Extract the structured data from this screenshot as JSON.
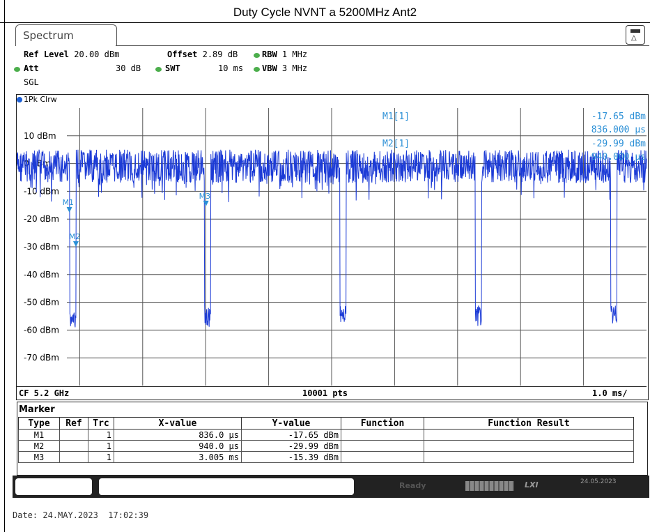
{
  "page_title": "Duty Cycle NVNT a 5200MHz Ant2",
  "tab": {
    "label": "Spectrum"
  },
  "settings": {
    "ref_level_label": "Ref Level",
    "ref_level_value": "20.00 dBm",
    "offset_label": "Offset",
    "offset_value": "2.89 dB",
    "rbw_label": "RBW",
    "rbw_value": "1 MHz",
    "att_label": "Att",
    "att_value": "30 dB",
    "swt_label": "SWT",
    "swt_value": "10 ms",
    "vbw_label": "VBW",
    "vbw_value": "3 MHz",
    "sgl": "SGL"
  },
  "trace": {
    "label": "1Pk Clrw",
    "color": "#1c3bd6"
  },
  "y_axis": {
    "ticks": [
      "10 dBm",
      "0 dBm",
      "-10 dBm",
      "-20 dBm",
      "-30 dBm",
      "-40 dBm",
      "-50 dBm",
      "-60 dBm",
      "-70 dBm"
    ],
    "tick_values": [
      10,
      0,
      -10,
      -20,
      -30,
      -40,
      -50,
      -60,
      -70
    ]
  },
  "readout": {
    "m1_label": "M1[1]",
    "m1_value": "-17.65 dBm",
    "m1_x": "836.000 µs",
    "m2_label": "M2[1]",
    "m2_value": "-29.99 dBm",
    "m2_x": "940.000 µs"
  },
  "bottom": {
    "cf": "CF 5.2 GHz",
    "pts": "10001 pts",
    "div": "1.0 ms/"
  },
  "marker_table": {
    "title": "Marker",
    "headers": [
      "Type",
      "Ref",
      "Trc",
      "X-value",
      "Y-value",
      "Function",
      "Function Result"
    ],
    "rows": [
      {
        "type": "M1",
        "ref": "",
        "trc": "1",
        "x": "836.0 µs",
        "y": "-17.65 dBm",
        "function": "",
        "result": ""
      },
      {
        "type": "M2",
        "ref": "",
        "trc": "1",
        "x": "940.0 µs",
        "y": "-29.99 dBm",
        "function": "",
        "result": ""
      },
      {
        "type": "M3",
        "ref": "",
        "trc": "1",
        "x": "3.005 ms",
        "y": "-15.39 dBm",
        "function": "",
        "result": ""
      }
    ]
  },
  "status": {
    "ready": "Ready",
    "date": "24.05.2023",
    "lxi": "LXI"
  },
  "footer": {
    "date_line": "Date: 24.MAY.2023  17:02:39"
  },
  "chart_data": {
    "type": "line",
    "x_unit": "ms",
    "x_range": [
      0,
      10
    ],
    "ylim": [
      -80,
      20
    ],
    "markers": [
      {
        "name": "M1",
        "x_ms": 0.836,
        "y": -17.65
      },
      {
        "name": "M2",
        "x_ms": 0.94,
        "y": -29.99
      },
      {
        "name": "M3",
        "x_ms": 3.005,
        "y": -15.39
      }
    ],
    "on_level_dbm": 0,
    "off_level_dbm": -55,
    "off_gaps_ms": [
      [
        0.84,
        0.94
      ],
      [
        2.98,
        3.08
      ],
      [
        5.13,
        5.23
      ],
      [
        7.28,
        7.38
      ],
      [
        9.43,
        9.53
      ]
    ]
  }
}
